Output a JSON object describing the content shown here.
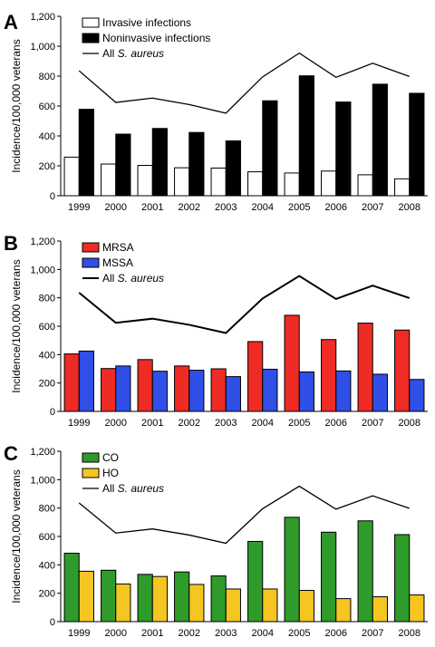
{
  "chart_data": [
    {
      "panel_label": "A",
      "type": "bar",
      "ylabel": "Incidence/100,000 veterans",
      "ylim": [
        0,
        1200
      ],
      "yticks": [
        "0",
        "200",
        "400",
        "600",
        "800",
        "1,000",
        "1,200"
      ],
      "categories": [
        "1999",
        "2000",
        "2001",
        "2002",
        "2003",
        "2004",
        "2005",
        "2006",
        "2007",
        "2008"
      ],
      "series": [
        {
          "name": "Invasive infections",
          "color": "#ffffff",
          "values": [
            258,
            212,
            203,
            187,
            185,
            160,
            152,
            165,
            140,
            113
          ]
        },
        {
          "name": "Noninvasive infections",
          "color": "#000000",
          "values": [
            578,
            412,
            450,
            423,
            367,
            635,
            802,
            627,
            746,
            685
          ]
        }
      ],
      "line": {
        "name_prefix": "All ",
        "name_italic": "S. aureus",
        "color": "#000000",
        "width": 1.3,
        "values": [
          836,
          624,
          653,
          610,
          552,
          795,
          954,
          792,
          886,
          798
        ]
      },
      "legend_position": "top-left"
    },
    {
      "panel_label": "B",
      "type": "bar",
      "ylabel": "Incidence/100,000 veterans",
      "ylim": [
        0,
        1200
      ],
      "yticks": [
        "0",
        "200",
        "400",
        "600",
        "800",
        "1,000",
        "1,200"
      ],
      "categories": [
        "1999",
        "2000",
        "2001",
        "2002",
        "2003",
        "2004",
        "2005",
        "2006",
        "2007",
        "2008"
      ],
      "series": [
        {
          "name": "MRSA",
          "color": "#ee2b24",
          "values": [
            405,
            302,
            365,
            320,
            300,
            492,
            677,
            506,
            622,
            573
          ]
        },
        {
          "name": "MSSA",
          "color": "#2f4fe6",
          "values": [
            425,
            320,
            283,
            290,
            245,
            297,
            278,
            285,
            262,
            225
          ]
        }
      ],
      "line": {
        "name_prefix": "All ",
        "name_italic": "S. aureus",
        "color": "#000000",
        "width": 2,
        "values": [
          836,
          624,
          653,
          610,
          552,
          795,
          954,
          792,
          886,
          798
        ]
      },
      "legend_position": "top-left"
    },
    {
      "panel_label": "C",
      "type": "bar",
      "ylabel": "Incidence/100,000 veterans",
      "ylim": [
        0,
        1200
      ],
      "yticks": [
        "0",
        "200",
        "400",
        "600",
        "800",
        "1,000",
        "1,200"
      ],
      "categories": [
        "1999",
        "2000",
        "2001",
        "2002",
        "2003",
        "2004",
        "2005",
        "2006",
        "2007",
        "2008"
      ],
      "series": [
        {
          "name": "CO",
          "color": "#2e9b2a",
          "values": [
            482,
            362,
            333,
            350,
            322,
            565,
            735,
            630,
            710,
            613
          ]
        },
        {
          "name": "HO",
          "color": "#f5c522",
          "values": [
            355,
            265,
            318,
            262,
            230,
            230,
            220,
            162,
            175,
            188
          ]
        }
      ],
      "line": {
        "name_prefix": "All ",
        "name_italic": "S. aureus",
        "color": "#000000",
        "width": 1.3,
        "values": [
          836,
          624,
          653,
          610,
          552,
          795,
          954,
          792,
          886,
          798
        ]
      },
      "legend_position": "top-left"
    }
  ]
}
